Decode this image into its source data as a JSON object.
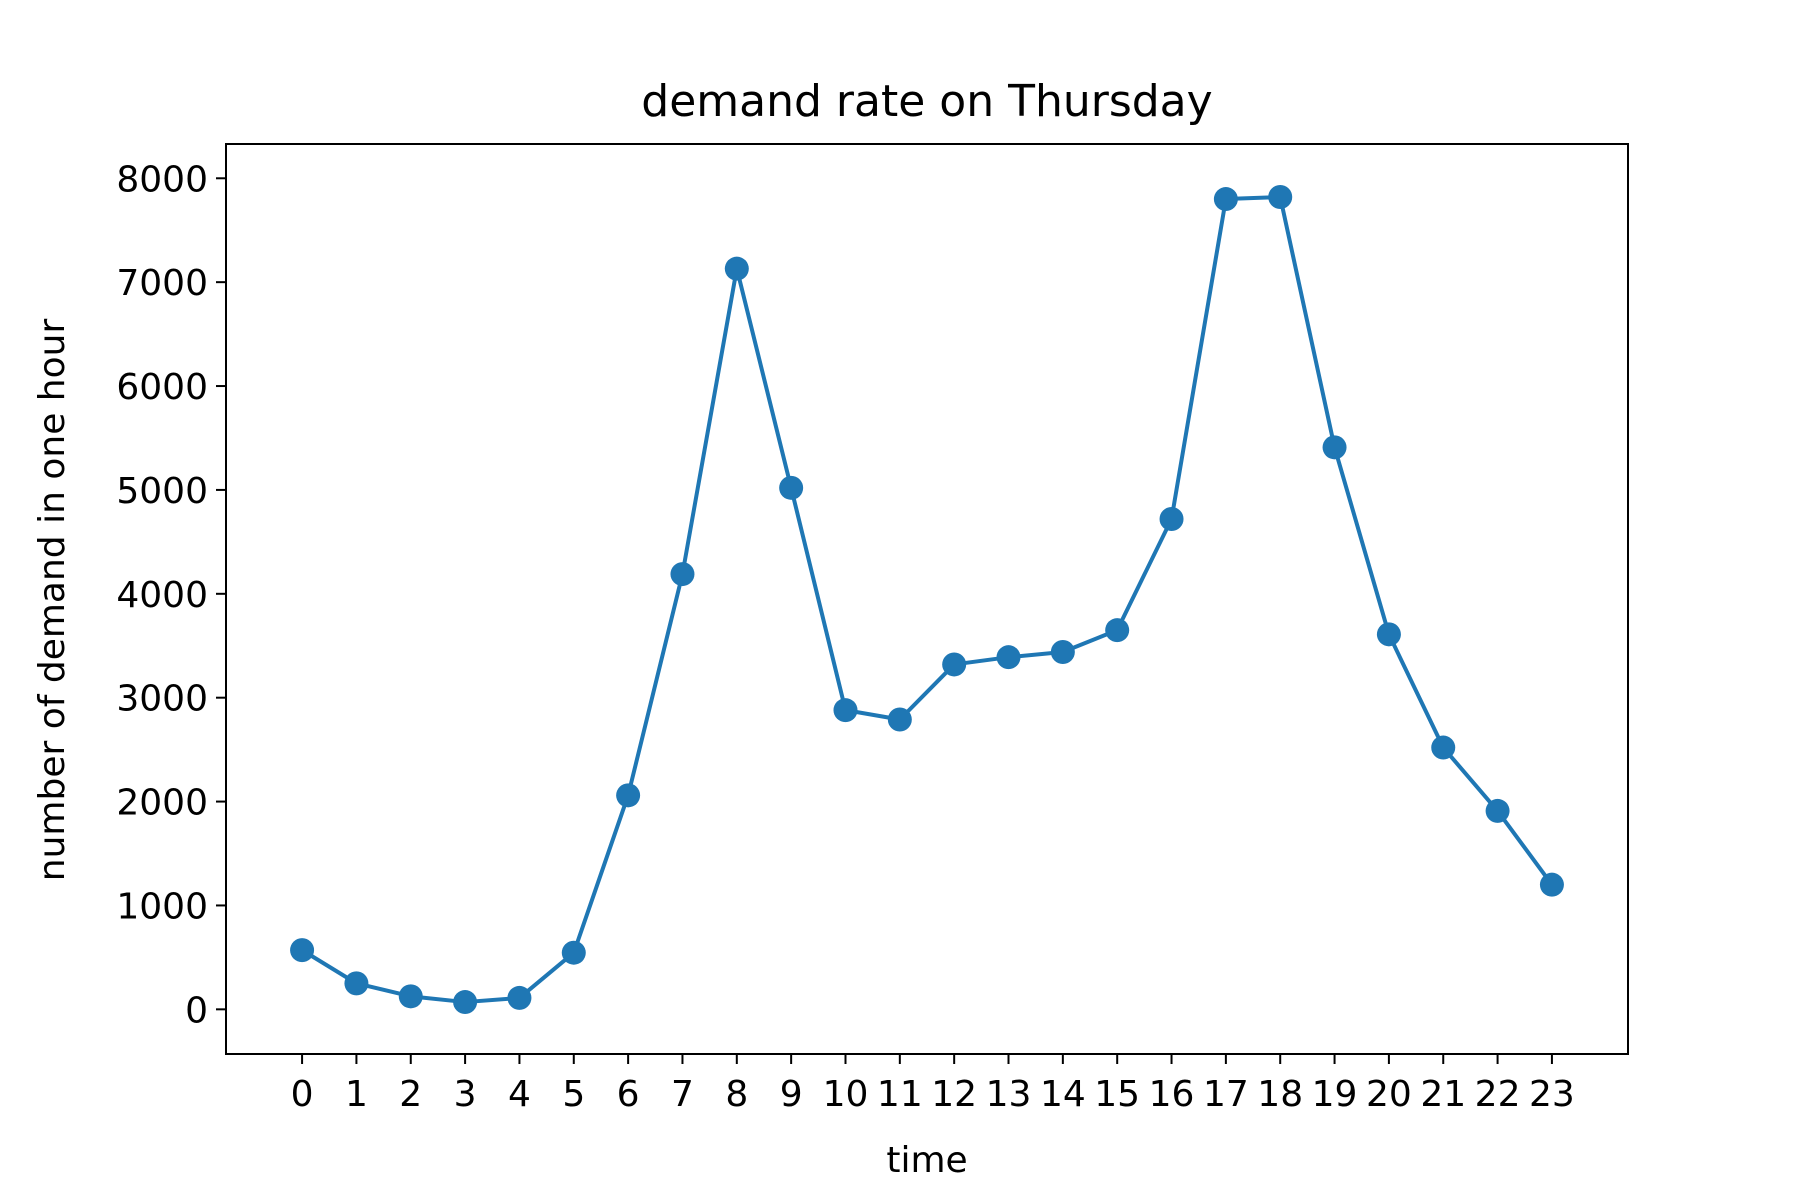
{
  "chart_data": {
    "type": "line",
    "title": "demand rate on Thursday",
    "xlabel": "time",
    "ylabel": "number of demand in one hour",
    "x": [
      0,
      1,
      2,
      3,
      4,
      5,
      6,
      7,
      8,
      9,
      10,
      11,
      12,
      13,
      14,
      15,
      16,
      17,
      18,
      19,
      20,
      21,
      22,
      23
    ],
    "xticks": [
      "0",
      "1",
      "2",
      "3",
      "4",
      "5",
      "6",
      "7",
      "8",
      "9",
      "10",
      "11",
      "12",
      "13",
      "14",
      "15",
      "16",
      "17",
      "18",
      "19",
      "20",
      "21",
      "22",
      "23"
    ],
    "series": [
      {
        "values": [
          570,
          250,
          125,
          70,
          110,
          545,
          2060,
          4190,
          7130,
          5020,
          2880,
          2790,
          3320,
          3390,
          3440,
          3650,
          4720,
          7800,
          7820,
          5410,
          3610,
          2520,
          1910,
          1200
        ],
        "color": "#1f77b4",
        "marker": "circle"
      }
    ],
    "yticks": [
      0,
      1000,
      2000,
      3000,
      4000,
      5000,
      6000,
      7000,
      8000
    ],
    "xlim": [
      -1.4,
      24.4
    ],
    "ylim": [
      -430,
      8330
    ],
    "grid": false,
    "legend": "none"
  }
}
